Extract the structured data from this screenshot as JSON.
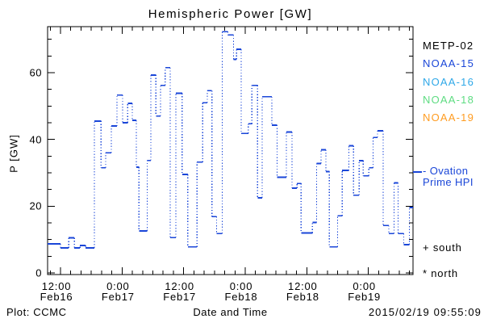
{
  "title": "Hemispheric Power [GW]",
  "footer": {
    "left": "Plot: CCMC",
    "right": "2015/02/19 09:55:09"
  },
  "legend": {
    "satellites": [
      {
        "label": "METP-02",
        "color": "#000000"
      },
      {
        "label": "NOAA-15",
        "color": "#1a46d8"
      },
      {
        "label": "NOAA-16",
        "color": "#2fa8e8"
      },
      {
        "label": "NOAA-18",
        "color": "#5edc82"
      },
      {
        "label": "NOAA-19",
        "color": "#ff9c21"
      }
    ],
    "ovation": {
      "line1": "- Ovation",
      "line2": "Prime HPI",
      "color": "#1a46d8"
    },
    "south_symbol": "+",
    "south_label": "south",
    "north_symbol": "*",
    "north_label": "north"
  },
  "chart_data": {
    "type": "line",
    "style": "step-post, solid horizontal segments with dotted vertical risers",
    "title": "Hemispheric Power [GW]",
    "x_axis": {
      "label": "Date and Time",
      "unit": "hours since 2015-02-16 00:00 UTC",
      "xlim": [
        9.49,
        80.7
      ],
      "major_ticks": [
        {
          "t": 12,
          "time": "12:00",
          "date": "Feb16"
        },
        {
          "t": 24,
          "time": "0:00",
          "date": "Feb17"
        },
        {
          "t": 36,
          "time": "12:00",
          "date": "Feb17"
        },
        {
          "t": 48,
          "time": "0:00",
          "date": "Feb18"
        },
        {
          "t": 60,
          "time": "12:00",
          "date": "Feb18"
        },
        {
          "t": 72,
          "time": "0:00",
          "date": "Feb19"
        }
      ],
      "minor_step_hours": 2
    },
    "y_axis": {
      "label": "P [GW]",
      "ylim": [
        0,
        73.8
      ],
      "major_ticks": [
        {
          "v": 0,
          "label": "0"
        },
        {
          "v": 20,
          "label": "20"
        },
        {
          "v": 40,
          "label": "40"
        },
        {
          "v": 60,
          "label": "60"
        }
      ],
      "minor_step": 5
    },
    "grid": false,
    "series": [
      {
        "name": "Ovation Prime HPI",
        "color": "#1a46d8",
        "end_t": 80.7,
        "steps": [
          [
            9.49,
            8.7
          ],
          [
            12.0,
            7.5
          ],
          [
            13.6,
            10.5
          ],
          [
            14.7,
            7.5
          ],
          [
            15.8,
            8.2
          ],
          [
            16.9,
            7.5
          ],
          [
            18.6,
            45.5
          ],
          [
            19.9,
            31.5
          ],
          [
            20.8,
            36.0
          ],
          [
            21.9,
            44.0
          ],
          [
            23.0,
            53.3
          ],
          [
            24.1,
            45.0
          ],
          [
            25.1,
            50.8
          ],
          [
            26.0,
            45.7
          ],
          [
            26.8,
            31.7
          ],
          [
            27.3,
            12.6
          ],
          [
            28.9,
            33.7
          ],
          [
            29.6,
            59.3
          ],
          [
            30.6,
            47.0
          ],
          [
            31.5,
            56.2
          ],
          [
            32.4,
            61.5
          ],
          [
            33.4,
            10.6
          ],
          [
            34.5,
            53.8
          ],
          [
            35.7,
            29.5
          ],
          [
            36.8,
            7.8
          ],
          [
            38.6,
            33.2
          ],
          [
            39.7,
            51.0
          ],
          [
            40.6,
            54.6
          ],
          [
            41.5,
            16.9
          ],
          [
            42.4,
            11.8
          ],
          [
            43.5,
            72.3
          ],
          [
            44.6,
            71.3
          ],
          [
            45.7,
            64.0
          ],
          [
            46.3,
            67.0
          ],
          [
            47.2,
            41.8
          ],
          [
            48.6,
            44.7
          ],
          [
            49.3,
            56.2
          ],
          [
            50.4,
            22.5
          ],
          [
            51.3,
            52.8
          ],
          [
            53.2,
            44.3
          ],
          [
            54.2,
            28.7
          ],
          [
            56.0,
            42.2
          ],
          [
            57.1,
            25.4
          ],
          [
            58.1,
            26.8
          ],
          [
            58.9,
            12.0
          ],
          [
            61.1,
            15.1
          ],
          [
            61.9,
            32.8
          ],
          [
            62.8,
            36.9
          ],
          [
            63.7,
            30.4
          ],
          [
            64.4,
            7.8
          ],
          [
            66.0,
            17.1
          ],
          [
            66.9,
            30.7
          ],
          [
            68.2,
            38.1
          ],
          [
            69.1,
            23.3
          ],
          [
            70.2,
            33.6
          ],
          [
            71.0,
            29.1
          ],
          [
            72.1,
            31.5
          ],
          [
            72.9,
            40.6
          ],
          [
            73.8,
            42.6
          ],
          [
            74.9,
            14.2
          ],
          [
            76.0,
            11.8
          ],
          [
            77.0,
            27.0
          ],
          [
            77.8,
            11.8
          ],
          [
            78.9,
            8.5
          ],
          [
            80.0,
            19.6
          ]
        ]
      }
    ]
  }
}
